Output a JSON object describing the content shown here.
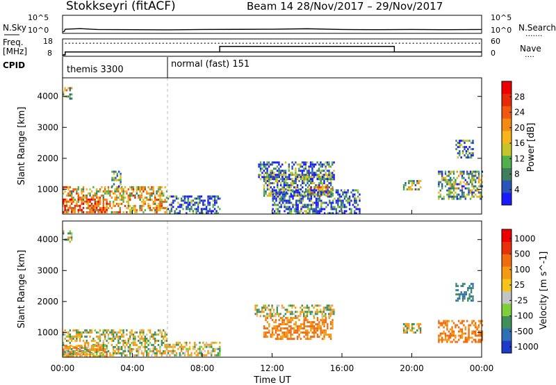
{
  "header": {
    "station": "Stokkseyri (fitACF)",
    "beam_range": "Beam 14  28/Nov/2017 – 29/Nov/2017"
  },
  "labels": {
    "nsky": "N.Sky",
    "nsearch": "N.Search",
    "freq_line1": "Freq.",
    "freq_line2": "[MHz]",
    "nave": "Nave",
    "cpid": "CPID",
    "dots": "......."
  },
  "cpid_segments": [
    {
      "time_start": 0,
      "time_end": 6.0,
      "label": "themis 3300"
    },
    {
      "time_start": 6.0,
      "time_end": 24,
      "label": "normal (fast) 151"
    }
  ],
  "chart_data": [
    {
      "type": "line",
      "name": "nsky-nsearch",
      "left_ticks": [
        "10^5",
        "10^0"
      ],
      "right_ticks": [
        "10^5",
        "10^0"
      ],
      "x": [
        0,
        0.1,
        0.15,
        1,
        2,
        4,
        6,
        8,
        10,
        12,
        14,
        16,
        18,
        20,
        22,
        24
      ],
      "y_log": [
        0,
        0.2,
        0.9,
        1.1,
        0.8,
        0.75,
        0.7,
        0.8,
        0.85,
        0.9,
        1.05,
        0.8,
        0.75,
        0.8,
        0.75,
        0.8
      ]
    },
    {
      "type": "line",
      "name": "freq-nave",
      "left_ticks": [
        "18",
        "8"
      ],
      "right_ticks": [
        "60",
        "0"
      ],
      "freq": {
        "x": [
          0,
          0.15,
          0.15,
          24
        ],
        "y": [
          8,
          8,
          10,
          10
        ]
      },
      "nave": {
        "x": [
          0,
          0.15,
          0.15,
          9,
          9,
          19,
          19,
          24
        ],
        "y": [
          0,
          0,
          12,
          12,
          35,
          35,
          12,
          12
        ]
      },
      "nsearch_dotted": {
        "x": [
          0.15,
          24
        ],
        "y": [
          48,
          48
        ]
      }
    },
    {
      "type": "heatmap",
      "name": "power",
      "xlim": [
        0,
        24
      ],
      "ylim": [
        200,
        4600
      ],
      "ylabel": "Slant Range [km]",
      "yticks": [
        "1000",
        "2000",
        "3000",
        "4000"
      ],
      "colorbar": {
        "label": "Power [dB]",
        "ticks": [
          "4",
          "8",
          "12",
          "16",
          "20",
          "24",
          "28"
        ],
        "colors": [
          "#1a1aff",
          "#2a55b8",
          "#3d7f5a",
          "#52b04a",
          "#c6c42a",
          "#f7b51a",
          "#f38a12",
          "#ef5a0e",
          "#e62a0a",
          "#ee0000"
        ]
      },
      "regions": [
        {
          "t0": 0.0,
          "t1": 6.0,
          "r0": 250,
          "r1": 1100,
          "intensity": 0.55
        },
        {
          "t0": 0.0,
          "t1": 2.5,
          "r0": 250,
          "r1": 700,
          "intensity": 0.85
        },
        {
          "t0": 0.0,
          "t1": 0.5,
          "r0": 3900,
          "r1": 4300,
          "intensity": 0.45
        },
        {
          "t0": 2.8,
          "t1": 3.3,
          "r0": 1000,
          "r1": 1600,
          "intensity": 0.3
        },
        {
          "t0": 6.0,
          "t1": 9.0,
          "r0": 250,
          "r1": 800,
          "intensity": 0.15
        },
        {
          "t0": 11.2,
          "t1": 15.5,
          "r0": 1300,
          "r1": 1900,
          "intensity": 0.2
        },
        {
          "t0": 11.5,
          "t1": 15.5,
          "r0": 800,
          "r1": 1500,
          "intensity": 0.3
        },
        {
          "t0": 14.0,
          "t1": 15.5,
          "r0": 800,
          "r1": 1100,
          "intensity": 0.65
        },
        {
          "t0": 12.0,
          "t1": 17.0,
          "r0": 250,
          "r1": 1000,
          "intensity": 0.15
        },
        {
          "t0": 19.5,
          "t1": 20.5,
          "r0": 1000,
          "r1": 1300,
          "intensity": 0.4
        },
        {
          "t0": 21.5,
          "t1": 24.0,
          "r0": 700,
          "r1": 1600,
          "intensity": 0.35
        },
        {
          "t0": 22.5,
          "t1": 23.5,
          "r0": 2000,
          "r1": 2600,
          "intensity": 0.2
        }
      ]
    },
    {
      "type": "heatmap",
      "name": "velocity",
      "xlim": [
        0,
        24
      ],
      "ylim": [
        200,
        4600
      ],
      "ylabel": "Slant Range [km]",
      "yticks": [
        "1000",
        "2000",
        "3000",
        "4000"
      ],
      "xlabel": "Time UT",
      "xticks": [
        "00:00",
        "04:00",
        "08:00",
        "12:00",
        "16:00",
        "20:00",
        "00:00"
      ],
      "colorbar": {
        "label": "Velocity [m s^-1]",
        "ticks": [
          "1000",
          "500",
          "100",
          "25",
          "-25",
          "-100",
          "-500",
          "-1000"
        ],
        "colors": [
          "#1c3bc8",
          "#2f6fb6",
          "#3e8f5a",
          "#7fcf3a",
          "#c4c4c4",
          "#f6c31a",
          "#f59a12",
          "#f06c0f",
          "#e8300b",
          "#ee0000"
        ]
      },
      "regions": [
        {
          "t0": 0.0,
          "t1": 6.0,
          "r0": 250,
          "r1": 1100,
          "vel": 0
        },
        {
          "t0": 0.0,
          "t1": 2.5,
          "r0": 250,
          "r1": 600,
          "vel": -150
        },
        {
          "t0": 0.0,
          "t1": 0.5,
          "r0": 3900,
          "r1": 4300,
          "vel": 80
        },
        {
          "t0": 6.0,
          "t1": 9.0,
          "r0": 250,
          "r1": 700,
          "vel": -50
        },
        {
          "t0": 11.0,
          "t1": 15.5,
          "r0": 1500,
          "r1": 1900,
          "vel": 0
        },
        {
          "t0": 11.5,
          "t1": 15.5,
          "r0": 800,
          "r1": 1500,
          "vel": -300
        },
        {
          "t0": 19.5,
          "t1": 20.5,
          "r0": 1000,
          "r1": 1300,
          "vel": -100
        },
        {
          "t0": 21.5,
          "t1": 24.0,
          "r0": 700,
          "r1": 1400,
          "vel": -400
        },
        {
          "t0": 22.5,
          "t1": 23.5,
          "r0": 2000,
          "r1": 2600,
          "vel": 300
        }
      ]
    }
  ]
}
